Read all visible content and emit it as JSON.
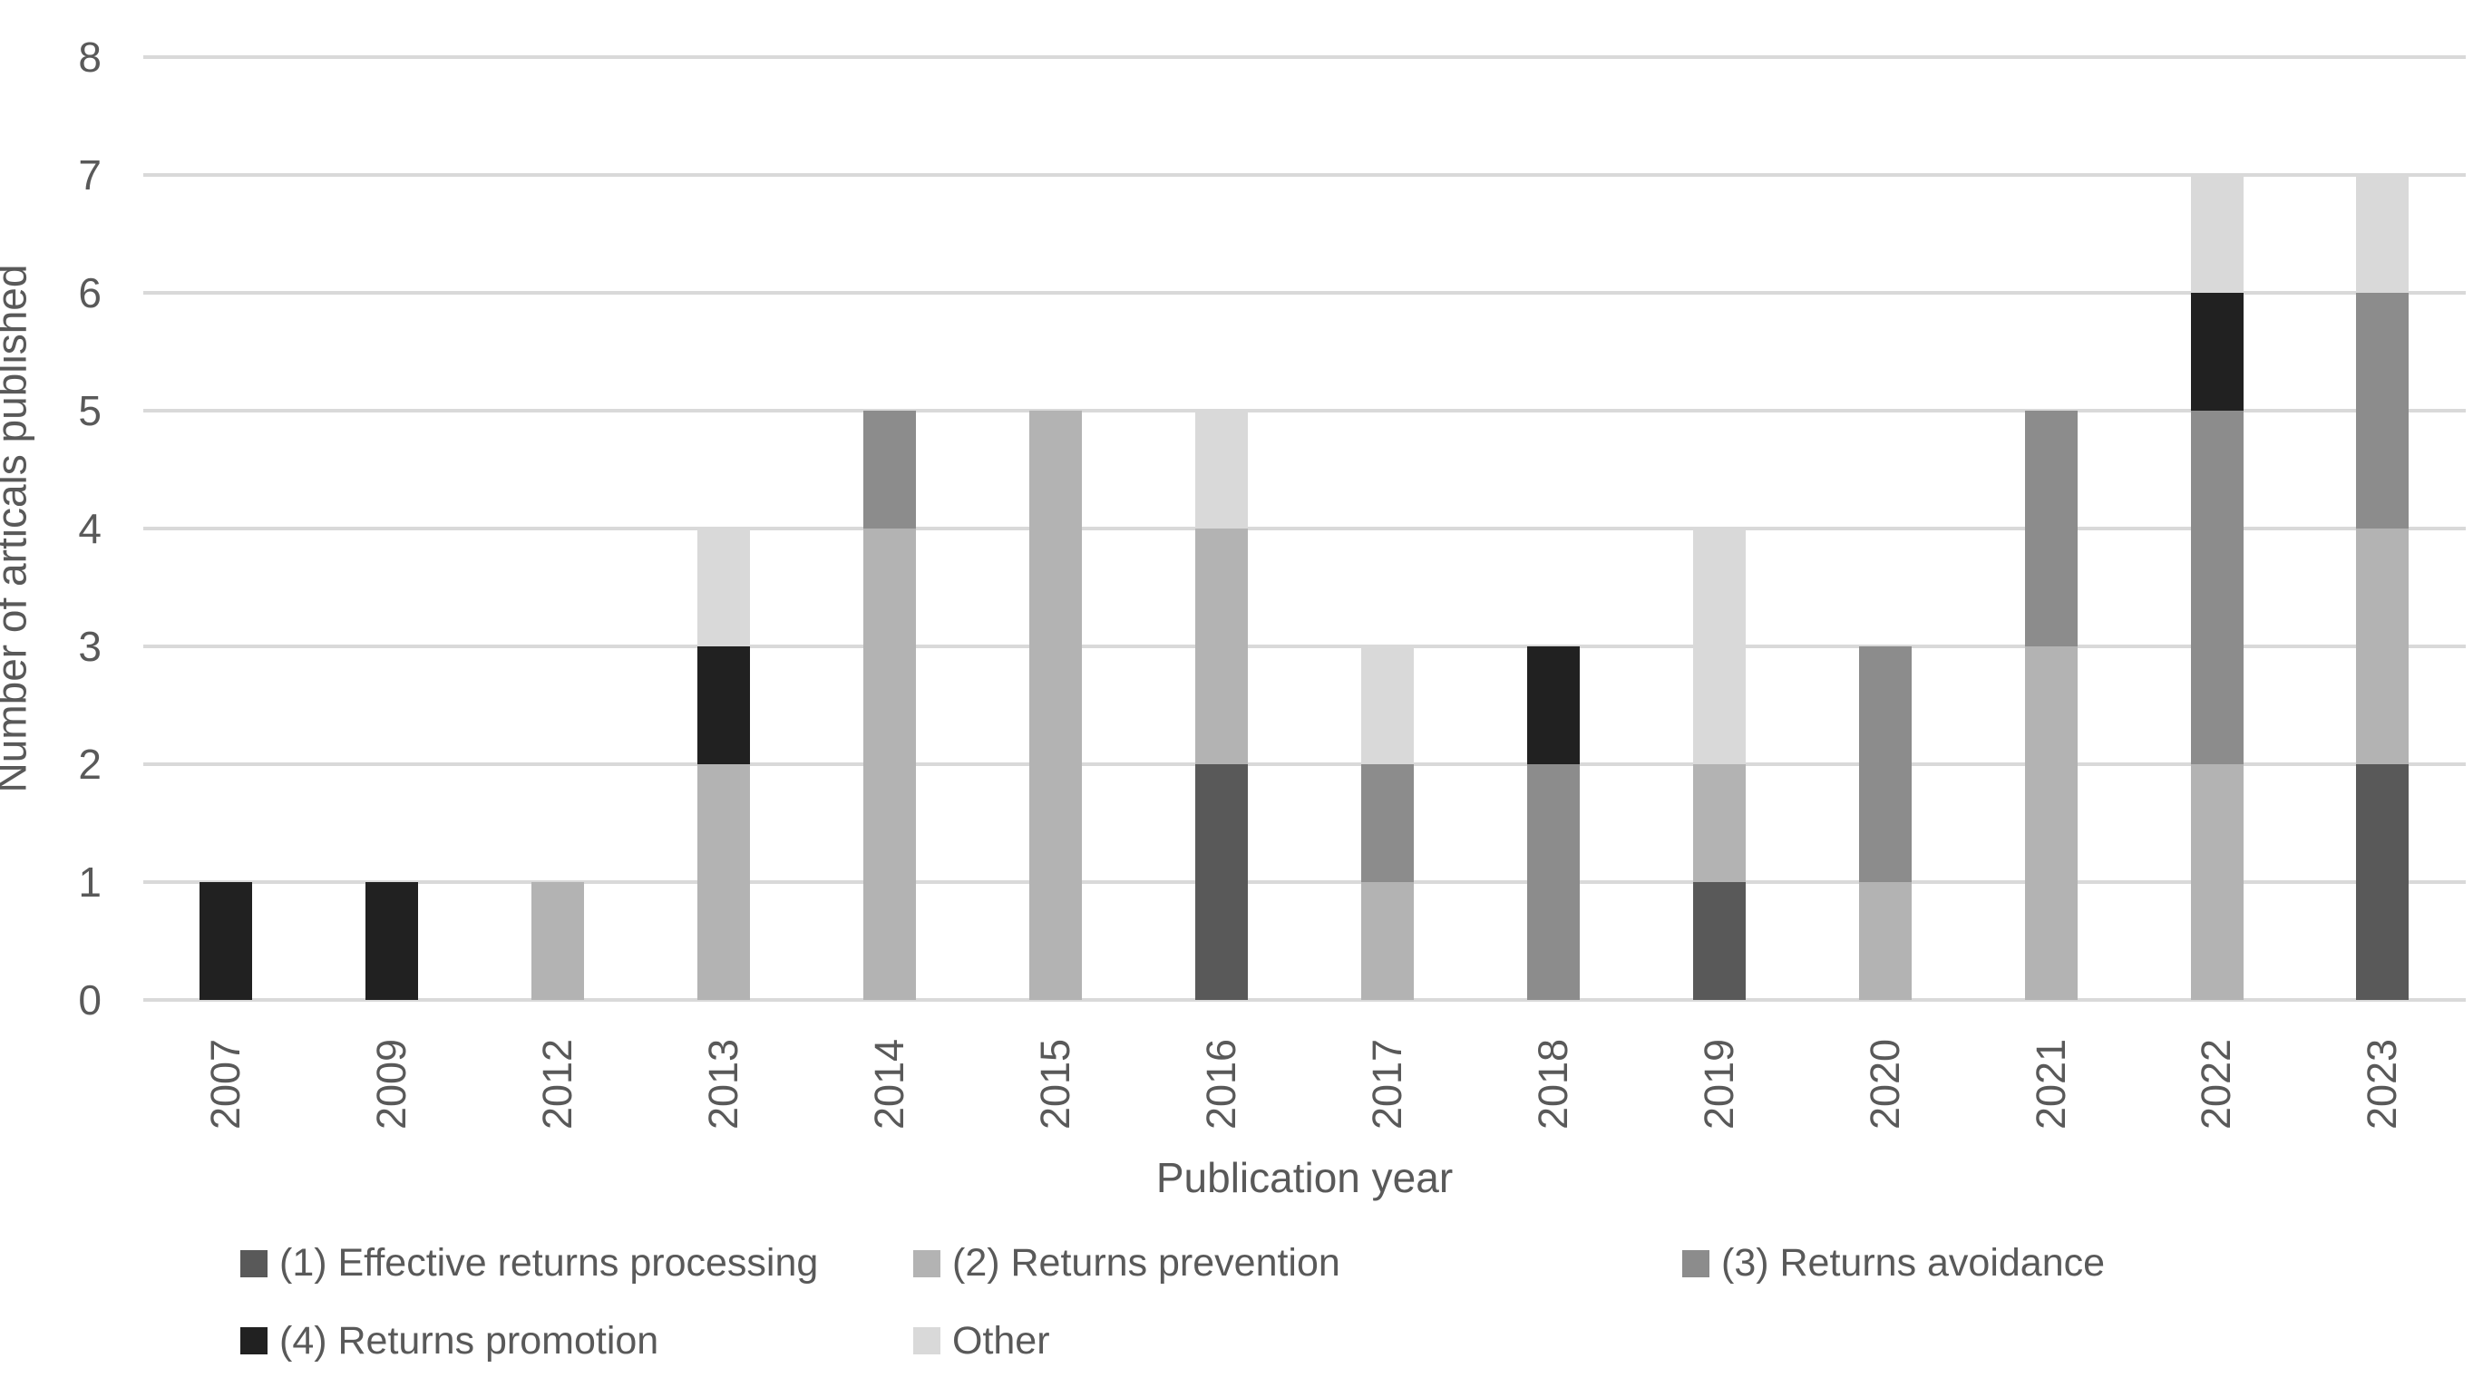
{
  "chart_data": {
    "type": "bar",
    "stacked": true,
    "xlabel": "Publication year",
    "ylabel": "Number of articals published",
    "categories": [
      "2007",
      "2009",
      "2012",
      "2013",
      "2014",
      "2015",
      "2016",
      "2017",
      "2018",
      "2019",
      "2020",
      "2021",
      "2022",
      "2023"
    ],
    "series": [
      {
        "name": "(1) Effective returns processing",
        "color": "#595959",
        "values": [
          0,
          0,
          0,
          0,
          0,
          0,
          2,
          0,
          0,
          1,
          0,
          0,
          0,
          2
        ]
      },
      {
        "name": "(2) Returns prevention",
        "color": "#b3b3b3",
        "values": [
          0,
          0,
          1,
          2,
          4,
          5,
          2,
          1,
          0,
          1,
          1,
          3,
          2,
          2
        ]
      },
      {
        "name": "(3) Returns avoidance",
        "color": "#8c8c8c",
        "values": [
          0,
          0,
          0,
          0,
          1,
          0,
          0,
          1,
          2,
          0,
          2,
          2,
          3,
          2
        ]
      },
      {
        "name": "(4) Returns promotion",
        "color": "#212121",
        "values": [
          1,
          1,
          0,
          1,
          0,
          0,
          0,
          0,
          1,
          0,
          0,
          0,
          1,
          0
        ]
      },
      {
        "name": "Other",
        "color": "#d9d9d9",
        "values": [
          0,
          0,
          0,
          1,
          0,
          0,
          1,
          1,
          0,
          2,
          0,
          0,
          1,
          1
        ]
      }
    ],
    "y_ticks": [
      0,
      1,
      2,
      3,
      4,
      5,
      6,
      7,
      8
    ],
    "ylim": [
      0,
      8
    ],
    "grid": true,
    "gridline_color": "#d9d9d9",
    "text_color": "#595959",
    "legend_position": "bottom",
    "legend_rows": [
      [
        "(1) Effective returns processing",
        "(2) Returns prevention",
        "(3) Returns avoidance"
      ],
      [
        "(4) Returns promotion",
        "Other"
      ]
    ]
  }
}
